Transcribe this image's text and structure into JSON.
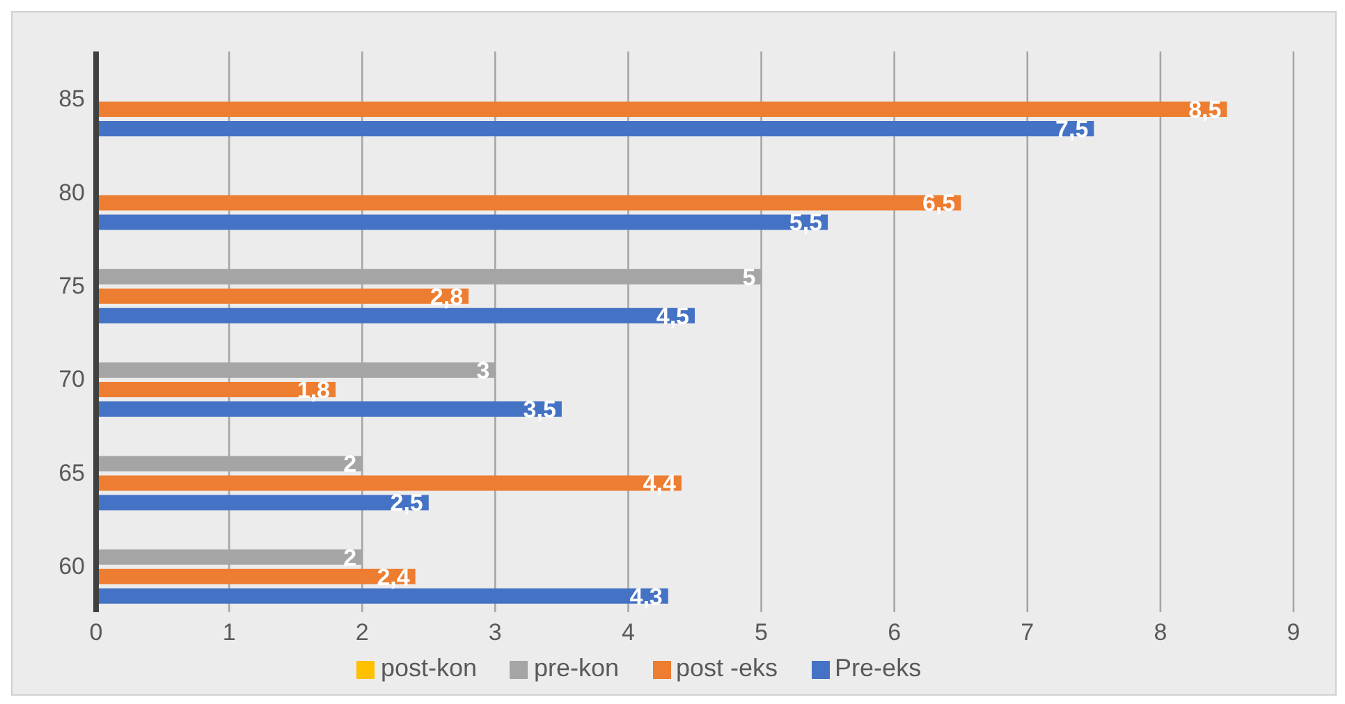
{
  "chart_data": {
    "type": "bar",
    "orientation": "horizontal",
    "categories": [
      "85",
      "80",
      "75",
      "70",
      "65",
      "60"
    ],
    "series": [
      {
        "name": "post-kon",
        "color": "#ffc000",
        "values": [
          null,
          null,
          null,
          null,
          null,
          null
        ]
      },
      {
        "name": "pre-kon",
        "color": "#a5a5a5",
        "values": [
          null,
          null,
          5,
          3,
          2,
          2
        ],
        "value_labels": [
          null,
          null,
          "5",
          "3",
          "2",
          "2"
        ]
      },
      {
        "name": "post -eks",
        "color": "#ed7d31",
        "values": [
          8.5,
          6.5,
          2.8,
          1.8,
          4.4,
          2.4
        ],
        "value_labels": [
          "8,5",
          "6,5",
          "2,8",
          "1,8",
          "4,4",
          "2,4"
        ]
      },
      {
        "name": "Pre-eks",
        "color": "#4472c4",
        "values": [
          7.5,
          5.5,
          4.5,
          3.5,
          2.5,
          4.3
        ],
        "value_labels": [
          "7,5",
          "5,5",
          "4,5",
          "3,5",
          "2,5",
          "4,3"
        ]
      }
    ],
    "xlim": [
      0,
      9
    ],
    "xticks": [
      0,
      1,
      2,
      3,
      4,
      5,
      6,
      7,
      8,
      9
    ],
    "grid": "x",
    "legend": "bottom"
  }
}
